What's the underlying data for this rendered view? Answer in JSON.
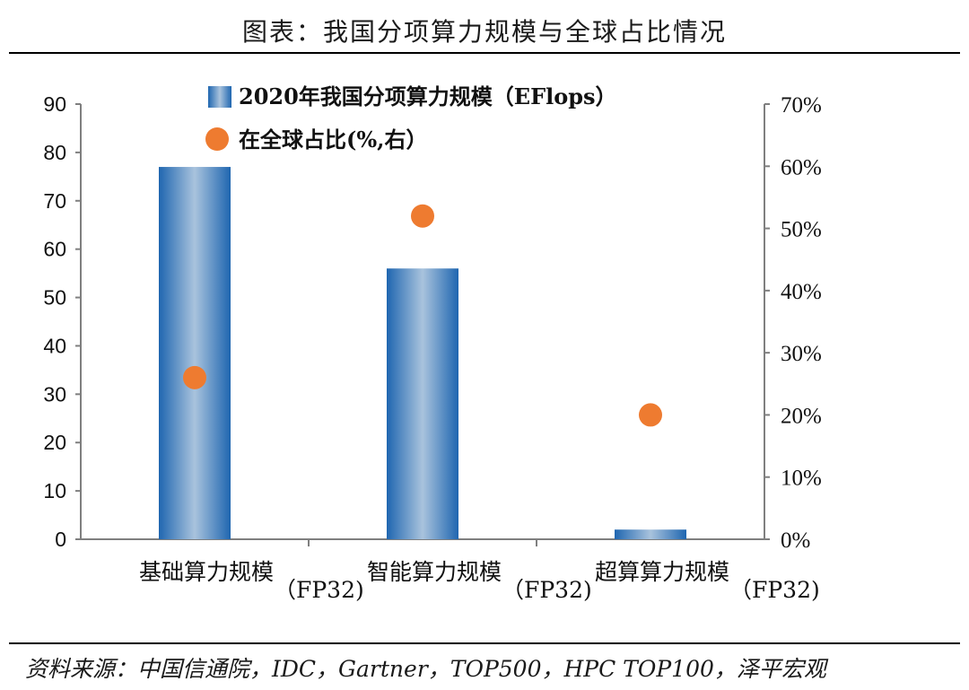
{
  "header": {
    "title": "图表：我国分项算力规模与全球占比情况"
  },
  "footer": {
    "source": "资料来源：中国信通院，IDC，Gartner，TOP500，HPC TOP100，泽平宏观"
  },
  "colors": {
    "bar": "#2e73b8",
    "dot": "#ee7b30",
    "axis": "#7f7f7f"
  },
  "chart_data": {
    "type": "bar",
    "categories": [
      "基础算力规模（FP32)",
      "智能算力规模（FP32)",
      "超算算力规模（FP32)"
    ],
    "series": [
      {
        "name": "2020年我国分项算力规模（EFlops）",
        "type": "bar",
        "axis": "left",
        "values": [
          77,
          56,
          2
        ]
      },
      {
        "name": "在全球占比(%,右）",
        "type": "scatter",
        "axis": "right",
        "values": [
          26,
          52,
          20
        ]
      }
    ],
    "y_left": {
      "min": 0,
      "max": 90,
      "ticks": [
        "0",
        "10",
        "20",
        "30",
        "40",
        "50",
        "60",
        "70",
        "80",
        "90"
      ]
    },
    "y_right": {
      "min": 0,
      "max": 70,
      "ticks": [
        "0%",
        "10%",
        "20%",
        "30%",
        "40%",
        "50%",
        "60%",
        "70%"
      ]
    },
    "legend_position": "top-center",
    "grid": false
  }
}
